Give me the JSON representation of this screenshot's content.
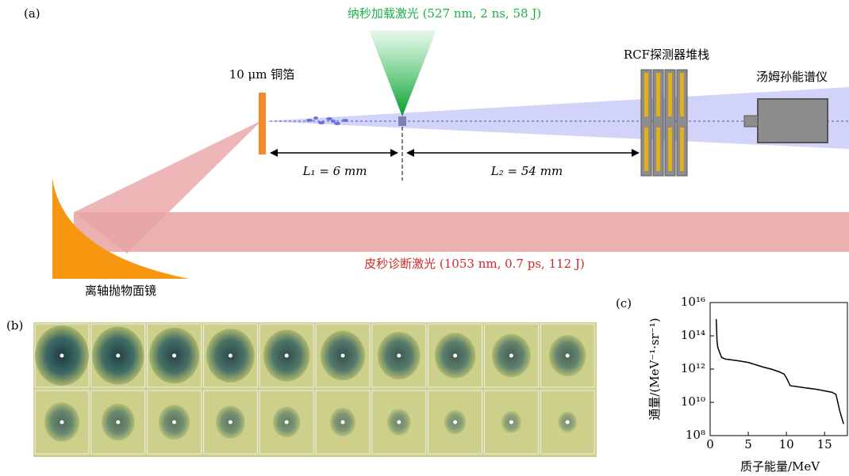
{
  "figure": {
    "panel_a": "(a)",
    "panel_b": "(b)",
    "panel_c": "(c)",
    "ns_laser": "纳秒加载激光 (527 nm, 2 ns, 58 J)",
    "foil": "10 μm 铜箔",
    "rcf": "RCF探测器堆栈",
    "thomson": "汤姆孙能谱仪",
    "l1": "L₁ = 6 mm",
    "l2": "L₂ = 54 mm",
    "ps_laser": "皮秒诊断激光 (1053 nm, 0.7 ps, 112 J)",
    "mirror": "离轴抛物面镜"
  },
  "chart_data": {
    "type": "line",
    "xlabel": "质子能量/MeV",
    "ylabel": "通量/(MeV⁻¹·sr⁻¹)",
    "log_y": true,
    "color": "#000000",
    "x": [
      0.8,
      0.9,
      1.0,
      1.5,
      2,
      3,
      4,
      5,
      6,
      7,
      8,
      9,
      9.7,
      10,
      10.5,
      12,
      14,
      16,
      16.5,
      17,
      17.5
    ],
    "values": [
      1000000000000000.0,
      50000000000000.0,
      20000000000000.0,
      5000000000000.0,
      4000000000000.0,
      3500000000000.0,
      3000000000000.0,
      2500000000000.0,
      1800000000000.0,
      1300000000000.0,
      1000000000000.0,
      700000000000.0,
      500000000000.0,
      300000000000.0,
      100000000000.0,
      80000000000.0,
      60000000000.0,
      40000000000.0,
      30000000000.0,
      3000000000.0,
      500000000.0
    ],
    "xlim": [
      0,
      18
    ],
    "xticks": [
      0,
      5,
      10,
      15
    ],
    "ylim": [
      100000000.0,
      1e+16
    ],
    "yticks": [
      {
        "value": 100000000.0,
        "label": "10⁸"
      },
      {
        "value": 10000000000.0,
        "label": "10¹⁰"
      },
      {
        "value": 1000000000000.0,
        "label": "10¹²"
      },
      {
        "value": 100000000000000.0,
        "label": "10¹⁴"
      },
      {
        "value": 1e+16,
        "label": "10¹⁶"
      }
    ]
  }
}
